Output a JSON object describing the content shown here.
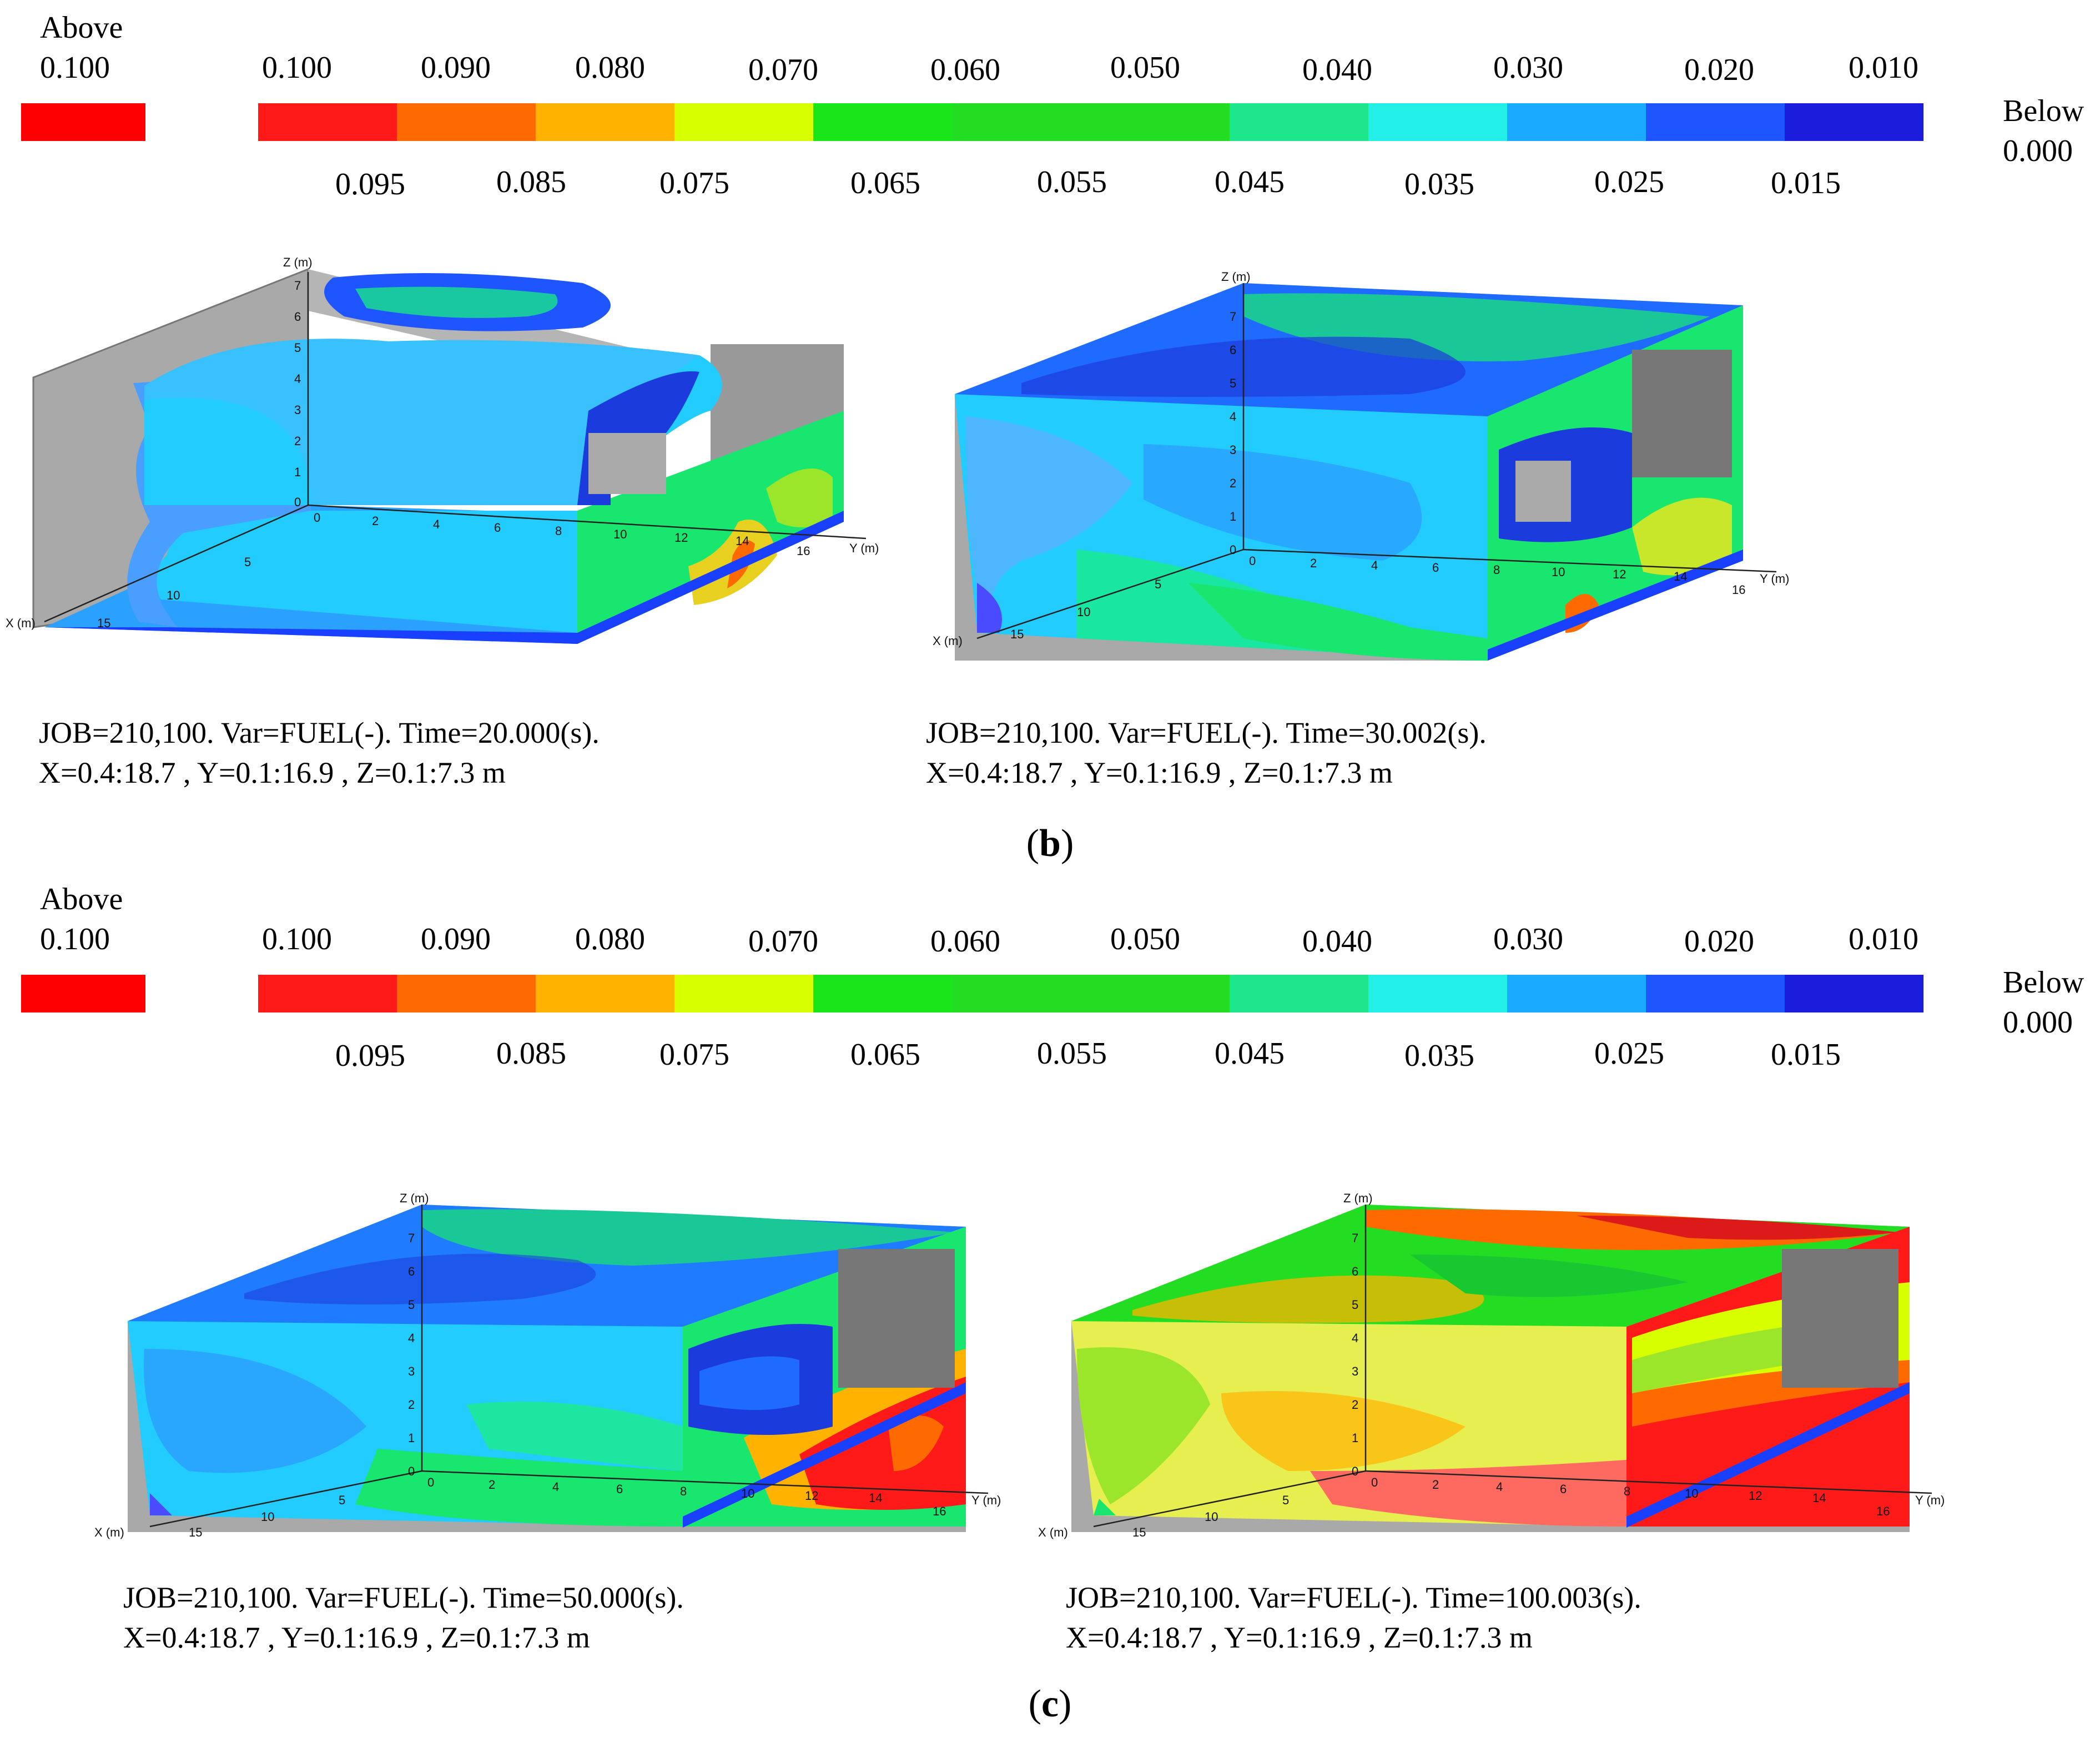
{
  "legend": {
    "above_label": "Above",
    "above_value": "0.100",
    "below_label": "Below",
    "below_value": "0.000",
    "top_ticks": [
      "0.100",
      "0.090",
      "0.080",
      "0.070",
      "0.060",
      "0.050",
      "0.040",
      "0.030",
      "0.020",
      "0.010"
    ],
    "bottom_ticks": [
      "0.095",
      "0.085",
      "0.075",
      "0.065",
      "0.055",
      "0.045",
      "0.035",
      "0.025",
      "0.015"
    ],
    "colors": [
      "#ff1a1a",
      "#ff6a00",
      "#ffb300",
      "#d8ff00",
      "#19e619",
      "#22dd22",
      "#1de68c",
      "#22f0e8",
      "#1aaaff",
      "#1f55ff",
      "#1c22e6",
      "#1c1cdc"
    ]
  },
  "axes": {
    "x_label": "X (m)",
    "y_label": "Y (m)",
    "z_label": "Z (m)",
    "z_ticks": [
      "0",
      "1",
      "2",
      "3",
      "4",
      "5",
      "6",
      "7"
    ],
    "y_ticks": [
      "0",
      "2",
      "4",
      "6",
      "8",
      "10",
      "12",
      "14",
      "16"
    ],
    "x_ticks": [
      "5",
      "10",
      "15"
    ]
  },
  "panels": [
    {
      "group": "b",
      "plots": [
        {
          "caption_line1": "JOB=210,100. Var=FUEL(-). Time=20.000(s).",
          "caption_line2": "X=0.4:18.7 , Y=0.1:16.9 , Z=0.1:7.3 m",
          "fuel_level": 0.035
        },
        {
          "caption_line1": "JOB=210,100. Var=FUEL(-). Time=30.002(s).",
          "caption_line2": "X=0.4:18.7 , Y=0.1:16.9 , Z=0.1:7.3 m",
          "fuel_level": 0.038
        }
      ]
    },
    {
      "group": "c",
      "plots": [
        {
          "caption_line1": "JOB=210,100. Var=FUEL(-). Time=50.000(s).",
          "caption_line2": "X=0.4:18.7 , Y=0.1:16.9 , Z=0.1:7.3 m",
          "fuel_level": 0.045
        },
        {
          "caption_line1": "JOB=210,100. Var=FUEL(-). Time=100.003(s).",
          "caption_line2": "X=0.4:18.7 , Y=0.1:16.9 , Z=0.1:7.3 m",
          "fuel_level": 0.08
        }
      ]
    }
  ],
  "labels": {
    "b_open": "(",
    "b": "b",
    "b_close": ")",
    "c_open": "(",
    "c": "c",
    "c_close": ")"
  }
}
